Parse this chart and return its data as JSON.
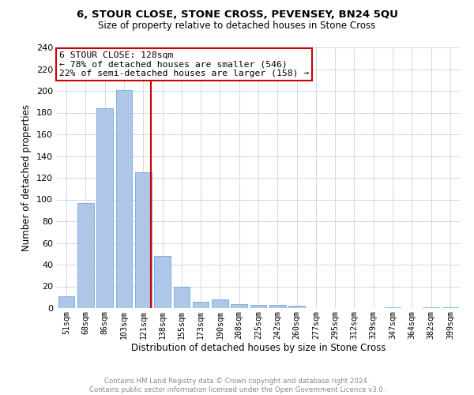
{
  "title": "6, STOUR CLOSE, STONE CROSS, PEVENSEY, BN24 5QU",
  "subtitle": "Size of property relative to detached houses in Stone Cross",
  "xlabel": "Distribution of detached houses by size in Stone Cross",
  "ylabel": "Number of detached properties",
  "categories": [
    "51sqm",
    "68sqm",
    "86sqm",
    "103sqm",
    "121sqm",
    "138sqm",
    "155sqm",
    "173sqm",
    "190sqm",
    "208sqm",
    "225sqm",
    "242sqm",
    "260sqm",
    "277sqm",
    "295sqm",
    "312sqm",
    "329sqm",
    "347sqm",
    "364sqm",
    "382sqm",
    "399sqm"
  ],
  "values": [
    11,
    97,
    184,
    201,
    125,
    48,
    20,
    6,
    8,
    4,
    3,
    3,
    2,
    0,
    0,
    0,
    0,
    1,
    0,
    1,
    1
  ],
  "bar_color": "#aec6e8",
  "bar_edge_color": "#5a9fd4",
  "property_label": "6 STOUR CLOSE: 128sqm",
  "annotation_line1": "← 78% of detached houses are smaller (546)",
  "annotation_line2": "22% of semi-detached houses are larger (158) →",
  "vline_color": "#cc0000",
  "annotation_box_edge_color": "#cc0000",
  "background_color": "#ffffff",
  "grid_color": "#d0d8e8",
  "footer_line1": "Contains HM Land Registry data © Crown copyright and database right 2024.",
  "footer_line2": "Contains public sector information licensed under the Open Government Licence v3.0.",
  "ylim": [
    0,
    240
  ],
  "yticks": [
    0,
    20,
    40,
    60,
    80,
    100,
    120,
    140,
    160,
    180,
    200,
    220,
    240
  ],
  "vline_x": 4.41
}
